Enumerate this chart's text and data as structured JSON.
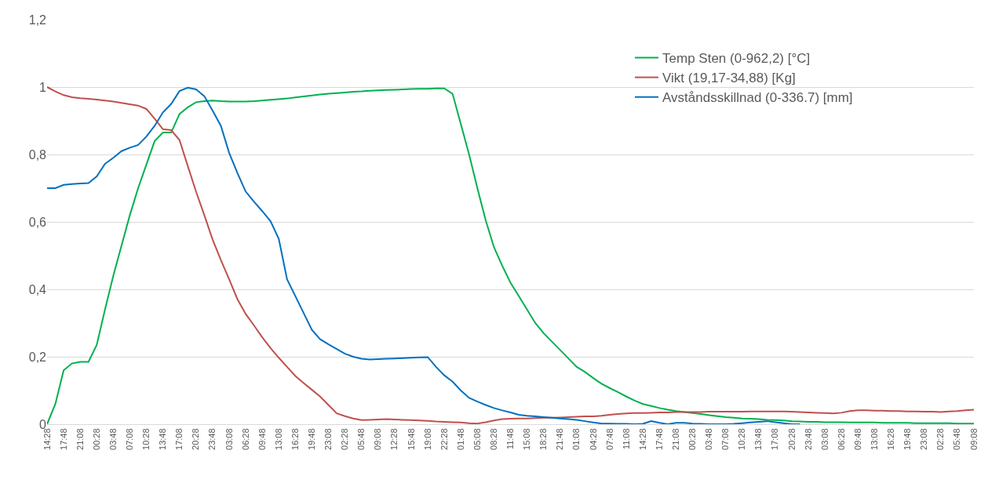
{
  "chart_data": {
    "type": "line",
    "categories": [
      "14:28",
      null,
      "17:48",
      null,
      "21:08",
      null,
      "00:28",
      null,
      "03:48",
      null,
      "07:08",
      null,
      "10:28",
      null,
      "13:48",
      null,
      "17:08",
      null,
      "20:28",
      null,
      "23:48",
      null,
      "03:08",
      null,
      "06:28",
      null,
      "09:48",
      null,
      "13:08",
      null,
      "16:28",
      null,
      "19:48",
      null,
      "23:08",
      null,
      "02:28",
      null,
      "05:48",
      null,
      "09:08",
      null,
      "12:28",
      null,
      "15:48",
      null,
      "19:08",
      null,
      "22:28",
      null,
      "01:48",
      null,
      "05:08",
      null,
      "08:28",
      null,
      "11:48",
      null,
      "15:08",
      null,
      "18:28",
      null,
      "21:48",
      null,
      "01:08",
      null,
      "04:28",
      null,
      "07:48",
      null,
      "11:08",
      null,
      "14:28",
      null,
      "17:48",
      null,
      "21:08",
      null,
      "00:28",
      null,
      "03:48",
      null,
      "07:08",
      null,
      "10:28",
      null,
      "13:48",
      null,
      "17:08",
      null,
      "20:28",
      null,
      "23:48",
      null,
      "03:08",
      null,
      "06:28",
      null,
      "09:48",
      null,
      "13:08",
      null,
      "16:28",
      null,
      "19:48",
      null,
      "23:08",
      null,
      "02:28",
      null,
      "05:48",
      null,
      "09:08"
    ],
    "ylim": [
      0,
      1.2
    ],
    "yticks": [
      {
        "value": 0,
        "label": "0"
      },
      {
        "value": 0.2,
        "label": "0,2"
      },
      {
        "value": 0.4,
        "label": "0,4"
      },
      {
        "value": 0.6,
        "label": "0,6"
      },
      {
        "value": 0.8,
        "label": "0,8"
      },
      {
        "value": 1,
        "label": "1"
      },
      {
        "value": 1.2,
        "label": "1,2"
      }
    ],
    "grid": "y",
    "legend": "top right",
    "marker": "none",
    "series": [
      {
        "name": "Temp Sten (0-962,2) [°C]",
        "color": "#00b050",
        "values": [
          0,
          0.06,
          0.16,
          0.18,
          0.185,
          0.185,
          0.235,
          0.34,
          0.44,
          0.53,
          0.62,
          0.7,
          0.77,
          0.84,
          0.865,
          0.865,
          0.92,
          0.94,
          0.955,
          0.958,
          0.96,
          0.958,
          0.957,
          0.957,
          0.957,
          0.958,
          0.96,
          0.962,
          0.964,
          0.966,
          0.969,
          0.972,
          0.975,
          0.978,
          0.98,
          0.982,
          0.984,
          0.986,
          0.987,
          0.989,
          0.99,
          0.991,
          0.992,
          0.993,
          0.994,
          0.995,
          0.995,
          0.996,
          0.996,
          0.98,
          0.89,
          0.8,
          0.7,
          0.605,
          0.525,
          0.47,
          0.42,
          0.38,
          0.34,
          0.3,
          0.27,
          0.245,
          0.22,
          0.195,
          0.17,
          0.155,
          0.137,
          0.12,
          0.107,
          0.095,
          0.082,
          0.07,
          0.06,
          0.054,
          0.048,
          0.043,
          0.039,
          0.036,
          0.033,
          0.03,
          0.027,
          0.024,
          0.021,
          0.019,
          0.017,
          0.016,
          0.015,
          0.013,
          0.012,
          0.011,
          0.009,
          0.008,
          0.007,
          0.007,
          0.006,
          0.006,
          0.006,
          0.005,
          0.005,
          0.005,
          0.005,
          0.004,
          0.004,
          0.004,
          0.004,
          0.003,
          0.003,
          0.003,
          0.003,
          0.003,
          0.002,
          0.002,
          0.002
        ]
      },
      {
        "name": "Vikt (19,17-34,88) [Kg]",
        "color": "#c0504d",
        "values": [
          1,
          0.987,
          0.976,
          0.97,
          0.967,
          0.965,
          0.963,
          0.96,
          0.957,
          0.953,
          0.949,
          0.945,
          0.935,
          0.906,
          0.875,
          0.872,
          0.843,
          0.766,
          0.69,
          0.62,
          0.548,
          0.487,
          0.43,
          0.371,
          0.327,
          0.293,
          0.258,
          0.226,
          0.197,
          0.17,
          0.143,
          0.122,
          0.102,
          0.082,
          0.057,
          0.032,
          0.024,
          0.017,
          0.012,
          0.013,
          0.014,
          0.015,
          0.014,
          0.013,
          0.012,
          0.011,
          0.01,
          0.008,
          0.007,
          0.006,
          0.005,
          0.003,
          0.002,
          0.006,
          0.011,
          0.015,
          0.016,
          0.017,
          0.017,
          0.018,
          0.019,
          0.019,
          0.02,
          0.021,
          0.022,
          0.023,
          0.023,
          0.025,
          0.028,
          0.03,
          0.032,
          0.033,
          0.033,
          0.034,
          0.035,
          0.035,
          0.036,
          0.036,
          0.036,
          0.036,
          0.037,
          0.037,
          0.037,
          0.037,
          0.037,
          0.038,
          0.038,
          0.038,
          0.038,
          0.038,
          0.037,
          0.036,
          0.035,
          0.034,
          0.033,
          0.032,
          0.034,
          0.039,
          0.041,
          0.041,
          0.04,
          0.04,
          0.039,
          0.039,
          0.038,
          0.038,
          0.037,
          0.037,
          0.036,
          0.038,
          0.039,
          0.041,
          0.043
        ]
      },
      {
        "name": "Avståndsskillnad (0-336.7) [mm]",
        "color": "#0070c0",
        "values": [
          0.7,
          0.7,
          0.71,
          0.712,
          0.714,
          0.715,
          0.735,
          0.772,
          0.79,
          0.81,
          0.82,
          0.828,
          0.853,
          0.885,
          0.925,
          0.95,
          0.988,
          0.998,
          0.993,
          0.973,
          0.93,
          0.885,
          0.805,
          0.745,
          0.69,
          0.66,
          0.632,
          0.602,
          0.55,
          0.43,
          0.38,
          0.33,
          0.28,
          0.252,
          0.237,
          0.223,
          0.209,
          0.2,
          0.194,
          0.192,
          0.193,
          0.194,
          0.195,
          0.196,
          0.197,
          0.198,
          0.199,
          0.17,
          0.145,
          0.126,
          0.1,
          0.078,
          0.067,
          0.057,
          0.048,
          0.041,
          0.035,
          0.028,
          0.025,
          0.023,
          0.021,
          0.019,
          0.017,
          0.015,
          0.013,
          0.009,
          0.005,
          0.002,
          0.002,
          0.001,
          0.001,
          0,
          0.001,
          0.009,
          0.004,
          0,
          0.004,
          0.004,
          0.002,
          0.001,
          0,
          0,
          0,
          0.001,
          0.003,
          0.005,
          0.007,
          0.009,
          0.006,
          0.003,
          0,
          0,
          null,
          null,
          null,
          null,
          null,
          null,
          null,
          null,
          null,
          null,
          null,
          null,
          null,
          null,
          null,
          null,
          null,
          null,
          null,
          null,
          null
        ]
      }
    ]
  }
}
